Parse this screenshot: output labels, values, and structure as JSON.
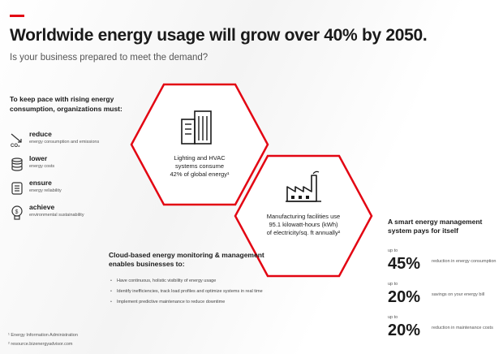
{
  "header": {
    "title": "Worldwide energy usage will grow over 40% by 2050.",
    "subtitle": "Is your business prepared to meet the demand?",
    "accent_color": "#e30613"
  },
  "intro": {
    "text": "To keep pace with rising energy consumption, organizations must:"
  },
  "actions": [
    {
      "verb": "reduce",
      "desc": "energy consumption and emissions",
      "icon": "co2-down-icon"
    },
    {
      "verb": "lower",
      "desc": "energy costs",
      "icon": "coins-icon"
    },
    {
      "verb": "ensure",
      "desc": "energy reliability",
      "icon": "plug-icon"
    },
    {
      "verb": "achieve",
      "desc": "environmental sustainability",
      "icon": "lightbulb-icon"
    }
  ],
  "hexagons": [
    {
      "icon": "building-icon",
      "line1": "Lighting and HVAC",
      "line2": "systems consume",
      "line3": "42% of global energy¹"
    },
    {
      "icon": "factory-icon",
      "line1": "Manufacturing facilities use",
      "line2": "95.1 kilowatt-hours (kWh)",
      "line3": "of electricity/sq. ft annually²"
    }
  ],
  "cloud": {
    "heading": "Cloud-based energy monitoring & management enables businesses to:",
    "bullets": [
      "Have continuous, holistic visibility of energy usage",
      "Identify inefficiencies, track load profiles and optimize systems in real time",
      "Implement predictive maintenance to reduce downtime"
    ]
  },
  "smart": {
    "heading": "A smart energy management system pays for itself",
    "stats": [
      {
        "upto": "up to",
        "value": "45%",
        "what": "reduction in energy consumption"
      },
      {
        "upto": "up to",
        "value": "20%",
        "what": "savings on your energy bill"
      },
      {
        "upto": "up to",
        "value": "20%",
        "what": "reduction in maintenance costs"
      }
    ]
  },
  "footnotes": [
    "¹ Energy Information Administration",
    "² resource.bizenergyadvisor.com"
  ]
}
